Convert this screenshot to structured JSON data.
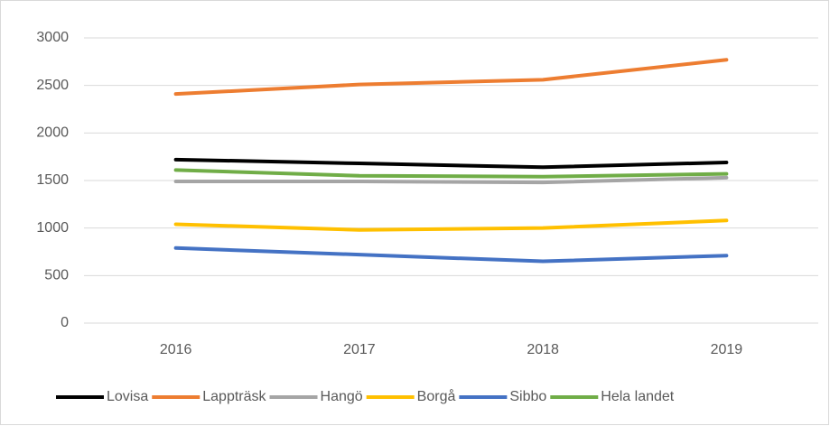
{
  "chart_data": {
    "type": "line",
    "categories": [
      "2016",
      "2017",
      "2018",
      "2019"
    ],
    "series": [
      {
        "name": "Lovisa",
        "color": "#000000",
        "values": [
          1720,
          1680,
          1640,
          1690
        ]
      },
      {
        "name": "Lappträsk",
        "color": "#ed7d31",
        "values": [
          2410,
          2510,
          2560,
          2770
        ]
      },
      {
        "name": "Hangö",
        "color": "#a5a5a5",
        "values": [
          1490,
          1490,
          1480,
          1530
        ]
      },
      {
        "name": "Borgå",
        "color": "#ffc000",
        "values": [
          1040,
          980,
          1000,
          1080
        ]
      },
      {
        "name": "Sibbo",
        "color": "#4472c4",
        "values": [
          790,
          720,
          650,
          710
        ]
      },
      {
        "name": "Hela landet",
        "color": "#70ad47",
        "values": [
          1610,
          1550,
          1540,
          1570
        ]
      }
    ],
    "ylim": [
      0,
      3000
    ],
    "yticks": [
      0,
      500,
      1000,
      1500,
      2000,
      2500,
      3000
    ],
    "grid": true,
    "legend": "bottom"
  }
}
